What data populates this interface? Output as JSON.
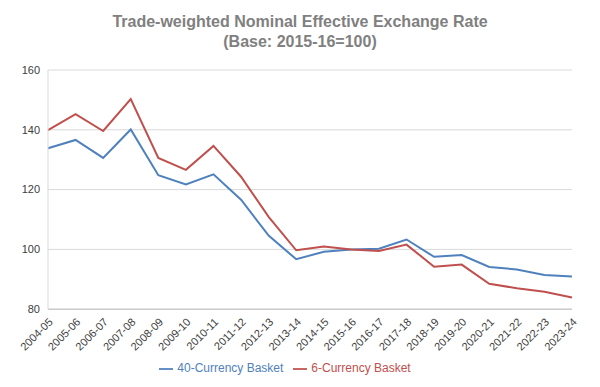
{
  "chart_data": {
    "type": "line",
    "title": "Trade-weighted Nominal Effective Exchange Rate",
    "subtitle": "(Base: 2015-16=100)",
    "categories": [
      "2004-05",
      "2005-06",
      "2006-07",
      "2007-08",
      "2008-09",
      "2009-10",
      "2010-11",
      "2011-12",
      "2012-13",
      "2013-14",
      "2014-15",
      "2015-16",
      "2016-17",
      "2017-18",
      "2018-19",
      "2019-20",
      "2020-21",
      "2021-22",
      "2022-23",
      "2023-24"
    ],
    "series": [
      {
        "name": "40-Currency Basket",
        "color": "#4f81bd",
        "values": [
          133.8,
          136.6,
          130.6,
          140.1,
          124.8,
          121.7,
          125.1,
          116.6,
          104.6,
          96.7,
          99.2,
          100,
          100.2,
          103.3,
          97.5,
          98.1,
          94.1,
          93.3,
          91.4,
          90.9
        ]
      },
      {
        "name": "6-Currency Basket",
        "color": "#c0504d",
        "values": [
          139.9,
          145.2,
          139.6,
          150.3,
          130.6,
          126.6,
          134.6,
          124.3,
          110.9,
          99.7,
          101.0,
          100,
          99.5,
          101.6,
          94.2,
          94.9,
          88.5,
          87.0,
          85.8,
          83.9
        ]
      }
    ],
    "ylim": [
      80,
      160
    ],
    "yticks": [
      80,
      100,
      120,
      140,
      160
    ],
    "grid": true,
    "legend": "bottom",
    "marker": "none"
  }
}
